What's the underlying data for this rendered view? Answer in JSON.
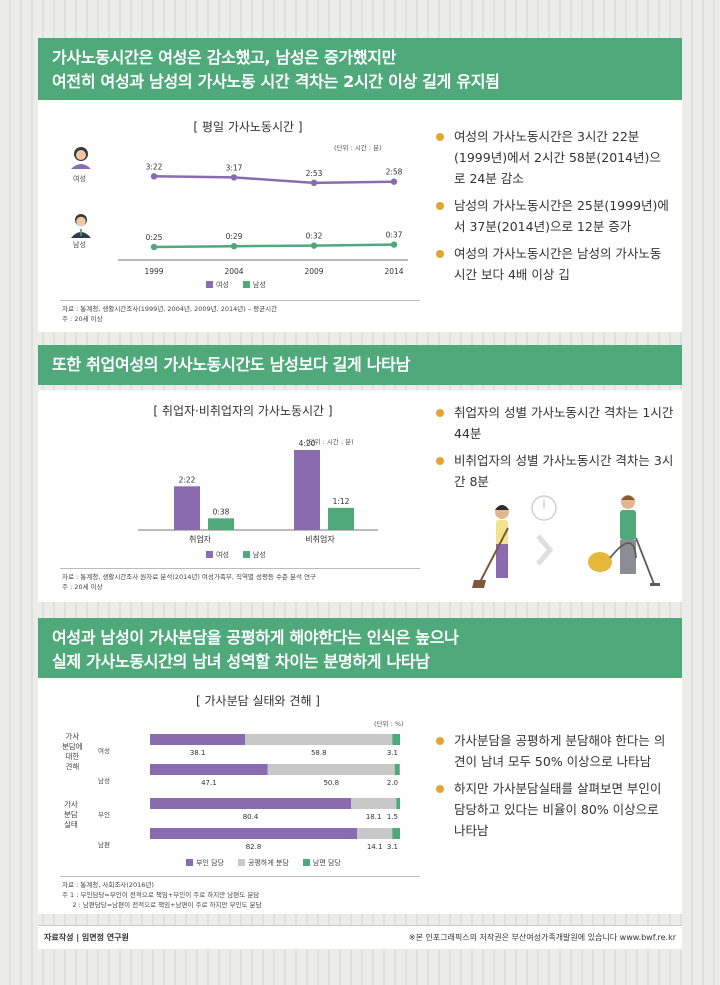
{
  "section1": {
    "heading_line1": "가사노동시간은 여성은 감소했고, 남성은 증가했지만",
    "heading_line2": "여전히 여성과 남성의 가사노동 시간 격차는 2시간 이상 길게 유지됨",
    "chart_title": "[ 평일 가사노동시간 ]",
    "unit": "(단위 : 시간 : 분)",
    "female_label": "여성",
    "male_label": "남성",
    "legend_female": "여성",
    "legend_male": "남성",
    "bullets": [
      "여성의 가사노동시간은 3시간 22분(1999년)에서 2시간 58분(2014년)으로 24분 감소",
      "남성의 가사노동시간은 25분(1999년)에서 37분(2014년)으로 12분 증가",
      "여성의 가사노동시간은 남성의 가사노동시간 보다 4배 이상 깁"
    ],
    "note_source": "자료 : 통계청, 생활시간조사(1999년, 2004년, 2009년, 2014년) – 평균시간",
    "note_remark": "주   : 20세 이상"
  },
  "section2": {
    "heading": "또한 취업여성의 가사노동시간도 남성보다 길게 나타남",
    "chart_title": "[ 취업자·비취업자의 가사노동시간 ]",
    "unit": "(단위 : 시간 : 분)",
    "legend_female": "여성",
    "legend_male": "남성",
    "bullets": [
      "취업자의 성별 가사노동시간 격차는 1시간 44분",
      "비취업자의 성별 가사노동시간 격차는 3시간 8분"
    ],
    "note_source": "자료 : 통계청, 생활시간조사 원자료 분석(2014년) 여성가족부, 직역별 성평등 수준 분석 연구",
    "note_remark": "주   : 20세 이상"
  },
  "section3": {
    "heading_line1": "여성과 남성이 가사분담을 공평하게 해야한다는 인식은 높으나",
    "heading_line2": "실제 가사노동시간의 남녀 성역할 차이는 분명하게 나타남",
    "chart_title": "[ 가사분담 실태와 견해 ]",
    "unit": "(단위 : %)",
    "group1_label": "가사\n분담에\n대한\n견해",
    "group2_label": "가사\n분담\n실태",
    "wife_label": "여성",
    "husband_label": "남성",
    "wife2_label": "부인",
    "husband2_label": "남편",
    "bullets": [
      "가사분담을 공평하게 분담해야 한다는 의견이 남녀 모두 50% 이상으로 나타남",
      "하지만 가사분담실태를 살펴보면 부인이 담당하고 있다는 비율이 80% 이상으로 나타남"
    ],
    "note_source": "자료 : 통계청, 사회조사(2016년)",
    "note_remark1": "주  1 : 부인담당=부인이 전적으로 책임+부인이 주로 하지만 남편도 분담",
    "note_remark2": "     2 : 남편담당=남편이 전적으로 책임+남편이 주로 하지만 부인도 분담"
  },
  "footer": {
    "author": "자료작성 | 임면정 연구원",
    "copyright": "※본 인포그래픽스의 저작권은 부산여성가족개발원에 있습니다  www.bwf.re.kr"
  },
  "colors": {
    "female": "#8a6bb0",
    "male": "#4fa97b",
    "equal": "#c8c8c8",
    "banner": "#4fa97b",
    "bullet": "#e3a52f"
  },
  "chart_data": [
    {
      "type": "line",
      "title": "[ 평일 가사노동시간 ]",
      "x": [
        "1999",
        "2004",
        "2009",
        "2014"
      ],
      "series": [
        {
          "name": "여성",
          "values": [
            202,
            197,
            173,
            178
          ],
          "labels": [
            "3:22",
            "3:17",
            "2:53",
            "2:58"
          ]
        },
        {
          "name": "남성",
          "values": [
            25,
            29,
            32,
            37
          ],
          "labels": [
            "0:25",
            "0:29",
            "0:32",
            "0:37"
          ]
        }
      ],
      "ylabel": "(단위 : 시간 : 분)"
    },
    {
      "type": "bar",
      "title": "[ 취업자·비취업자의 가사노동시간 ]",
      "categories": [
        "취업자",
        "비취업자"
      ],
      "series": [
        {
          "name": "여성",
          "values": [
            142,
            260
          ],
          "labels": [
            "2:22",
            "4:20"
          ]
        },
        {
          "name": "남성",
          "values": [
            38,
            72
          ],
          "labels": [
            "0:38",
            "1:12"
          ]
        }
      ],
      "ylabel": "(단위 : 시간 : 분)"
    },
    {
      "type": "bar",
      "title": "[ 가사분담 실태와 견해 ]",
      "stacked": true,
      "orientation": "horizontal",
      "categories": [
        "견해-여성",
        "견해-남성",
        "실태-부인",
        "실태-남편"
      ],
      "series": [
        {
          "name": "부인 담당",
          "values": [
            38.1,
            47.1,
            80.4,
            82.8
          ]
        },
        {
          "name": "공평하게 분담",
          "values": [
            58.8,
            50.8,
            18.1,
            14.1
          ]
        },
        {
          "name": "남편 담당",
          "values": [
            3.1,
            2.0,
            1.5,
            3.1
          ]
        }
      ],
      "ylabel": "(단위 : %)"
    }
  ]
}
